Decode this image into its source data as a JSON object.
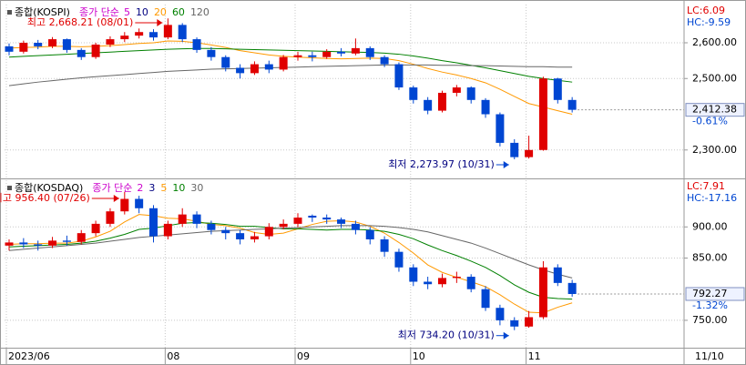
{
  "chart_data": [
    {
      "type": "candlestick",
      "title": "종합(KOSPI)",
      "ma_label": "종가 단순",
      "series": [
        {
          "name": "5",
          "color": "#cc00cc"
        },
        {
          "name": "10",
          "color": "#000080"
        },
        {
          "name": "20",
          "color": "#ff9900",
          "values": [
            2585,
            2587,
            2588,
            2590,
            2590,
            2589,
            2590,
            2592,
            2595,
            2598,
            2600,
            2605,
            2604,
            2600,
            2594,
            2587,
            2578,
            2572,
            2566,
            2562,
            2560,
            2558,
            2556,
            2555,
            2556,
            2557,
            2556,
            2550,
            2540,
            2528,
            2518,
            2510,
            2500,
            2488,
            2470,
            2450,
            2430,
            2420,
            2410,
            2400
          ]
        },
        {
          "name": "60",
          "color": "#008000",
          "values": [
            2560,
            2562,
            2564,
            2566,
            2568,
            2570,
            2572,
            2574,
            2576,
            2578,
            2580,
            2582,
            2583,
            2584,
            2584,
            2583,
            2582,
            2581,
            2580,
            2579,
            2578,
            2577,
            2576,
            2575,
            2574,
            2573,
            2571,
            2568,
            2563,
            2557,
            2550,
            2544,
            2537,
            2530,
            2522,
            2514,
            2506,
            2500,
            2495,
            2490
          ]
        },
        {
          "name": "120",
          "color": "#666666",
          "values": [
            2480,
            2485,
            2490,
            2494,
            2498,
            2502,
            2505,
            2508,
            2511,
            2514,
            2517,
            2520,
            2522,
            2524,
            2526,
            2527,
            2528,
            2529,
            2530,
            2531,
            2532,
            2533,
            2534,
            2535,
            2536,
            2537,
            2538,
            2538,
            2538,
            2538,
            2537,
            2537,
            2536,
            2536,
            2535,
            2534,
            2533,
            2533,
            2532,
            2532
          ]
        }
      ],
      "open": [
        2590,
        2575,
        2600,
        2590,
        2610,
        2580,
        2560,
        2595,
        2610,
        2620,
        2630,
        2615,
        2650,
        2610,
        2580,
        2560,
        2530,
        2515,
        2540,
        2525,
        2560,
        2565,
        2560,
        2575,
        2570,
        2585,
        2560,
        2540,
        2475,
        2440,
        2410,
        2460,
        2475,
        2440,
        2400,
        2320,
        2280,
        2300,
        2500,
        2440
      ],
      "high": [
        2598,
        2606,
        2608,
        2616,
        2612,
        2585,
        2600,
        2618,
        2630,
        2640,
        2638,
        2668.21,
        2655,
        2615,
        2588,
        2565,
        2540,
        2548,
        2550,
        2566,
        2575,
        2575,
        2582,
        2585,
        2612,
        2590,
        2565,
        2545,
        2480,
        2448,
        2466,
        2482,
        2478,
        2445,
        2405,
        2330,
        2340,
        2505,
        2502,
        2448
      ],
      "low": [
        2565,
        2570,
        2582,
        2585,
        2572,
        2552,
        2555,
        2588,
        2602,
        2612,
        2606,
        2610,
        2602,
        2572,
        2550,
        2520,
        2500,
        2510,
        2515,
        2520,
        2550,
        2548,
        2555,
        2562,
        2565,
        2552,
        2532,
        2468,
        2430,
        2400,
        2405,
        2450,
        2430,
        2390,
        2310,
        2273.97,
        2276,
        2298,
        2430,
        2405
      ],
      "close": [
        2575,
        2600,
        2590,
        2610,
        2580,
        2560,
        2595,
        2610,
        2620,
        2630,
        2615,
        2650,
        2610,
        2580,
        2560,
        2530,
        2515,
        2540,
        2525,
        2560,
        2565,
        2560,
        2575,
        2570,
        2585,
        2560,
        2540,
        2475,
        2440,
        2410,
        2460,
        2475,
        2440,
        2400,
        2320,
        2280,
        2300,
        2500,
        2440,
        2412.38
      ],
      "up_color": "#e00000",
      "down_color": "#0046d2",
      "ylim": [
        2223,
        2707
      ],
      "yticks": [
        {
          "value": 2300,
          "label": "2,300.00"
        },
        {
          "value": 2500,
          "label": "2,500.00"
        },
        {
          "value": 2600,
          "label": "2,600.00"
        }
      ],
      "grid": true,
      "high_label": "최고 2,668.21 (08/01)",
      "low_label": "최저 2,273.97 (10/31)",
      "last": {
        "value": 2412.38,
        "label": "2,412.38"
      },
      "change_label": "-0.61%",
      "lc_label": "LC:6.09",
      "hc_label": "HC:-9.59"
    },
    {
      "type": "candlestick",
      "title": "종합(KOSDAQ)",
      "ma_label": "종가 단순",
      "series": [
        {
          "name": "2",
          "color": "#cc00cc"
        },
        {
          "name": "3",
          "color": "#000080"
        },
        {
          "name": "5",
          "color": "#ff9900",
          "values": [
            872,
            873,
            873,
            874,
            874,
            877,
            884,
            893,
            908,
            920,
            918,
            914,
            913,
            909,
            904,
            902,
            898,
            891,
            888,
            890,
            897,
            904,
            909,
            910,
            908,
            901,
            890,
            875,
            858,
            839,
            827,
            819,
            812,
            804,
            791,
            776,
            763,
            762,
            771,
            778
          ]
        },
        {
          "name": "10",
          "color": "#008000",
          "values": [
            868,
            869,
            870,
            871,
            872,
            874,
            877,
            882,
            888,
            896,
            898,
            902,
            906,
            907,
            906,
            904,
            901,
            901,
            899,
            897,
            897,
            896,
            895,
            896,
            896,
            895,
            893,
            888,
            881,
            871,
            862,
            854,
            845,
            835,
            822,
            807,
            795,
            787,
            785,
            784
          ]
        },
        {
          "name": "30",
          "color": "#666666",
          "values": [
            862,
            864,
            866,
            868,
            870,
            872,
            874,
            877,
            880,
            883,
            885,
            887,
            889,
            891,
            893,
            894,
            895,
            896,
            897,
            898,
            899,
            900,
            901,
            902,
            902,
            902,
            901,
            899,
            896,
            892,
            886,
            880,
            874,
            866,
            857,
            848,
            839,
            831,
            824,
            818
          ]
        }
      ],
      "open": [
        870,
        875,
        872,
        870,
        878,
        876,
        890,
        905,
        925,
        945,
        930,
        885,
        905,
        920,
        905,
        895,
        890,
        880,
        885,
        900,
        905,
        918,
        915,
        912,
        905,
        895,
        880,
        860,
        835,
        812,
        808,
        818,
        820,
        800,
        770,
        750,
        740,
        755,
        835,
        810
      ],
      "high": [
        880,
        882,
        878,
        884,
        886,
        895,
        910,
        930,
        956.4,
        950,
        935,
        910,
        930,
        925,
        910,
        900,
        895,
        892,
        906,
        912,
        922,
        920,
        920,
        915,
        910,
        900,
        885,
        865,
        840,
        820,
        825,
        828,
        824,
        805,
        775,
        755,
        765,
        845,
        840,
        815
      ],
      "low": [
        862,
        866,
        862,
        866,
        870,
        872,
        885,
        900,
        920,
        922,
        875,
        880,
        900,
        898,
        888,
        880,
        872,
        875,
        880,
        896,
        900,
        908,
        905,
        898,
        888,
        872,
        852,
        828,
        805,
        800,
        803,
        810,
        795,
        765,
        742,
        734.2,
        738,
        752,
        805,
        788
      ],
      "close": [
        875,
        872,
        870,
        878,
        876,
        890,
        905,
        925,
        945,
        930,
        885,
        905,
        920,
        905,
        895,
        890,
        880,
        885,
        900,
        905,
        915,
        915,
        912,
        905,
        895,
        880,
        860,
        835,
        812,
        808,
        818,
        820,
        800,
        770,
        750,
        740,
        755,
        835,
        810,
        792.27
      ],
      "up_color": "#e00000",
      "down_color": "#0046d2",
      "ylim": [
        706,
        975
      ],
      "yticks": [
        {
          "value": 750,
          "label": "750.00"
        },
        {
          "value": 850,
          "label": "850.00"
        },
        {
          "value": 900,
          "label": "900.00"
        }
      ],
      "grid": true,
      "high_label": "최고 956.40 (07/26)",
      "low_label": "최저 734.20 (10/31)",
      "last": {
        "value": 792.27,
        "label": "792.27"
      },
      "change_label": "-1.32%",
      "lc_label": "LC:7.91",
      "hc_label": "HC:-17.16"
    }
  ],
  "x_axis": {
    "categories": [
      "2023/06",
      null,
      null,
      null,
      null,
      null,
      null,
      null,
      null,
      null,
      null,
      "08",
      null,
      null,
      null,
      null,
      null,
      null,
      null,
      null,
      "09",
      null,
      null,
      null,
      null,
      null,
      null,
      null,
      "10",
      null,
      null,
      null,
      null,
      null,
      null,
      null,
      "11",
      null,
      null,
      null
    ],
    "current_date": "11/10"
  }
}
